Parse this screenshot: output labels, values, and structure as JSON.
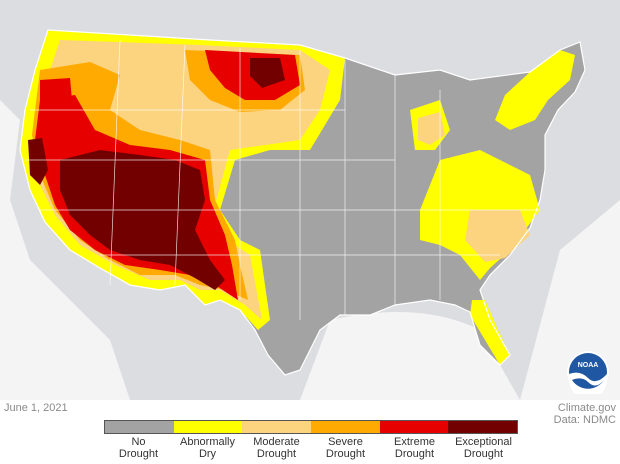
{
  "date": "June 1, 2021",
  "credit": {
    "site": "Climate.gov",
    "data": "Data: NDMC"
  },
  "logo_text": "NOAA",
  "legend": [
    {
      "line1": "No",
      "line2": "Drought",
      "color": "#a3a3a3"
    },
    {
      "line1": "Abnormally",
      "line2": "Dry",
      "color": "#ffff00"
    },
    {
      "line1": "Moderate",
      "line2": "Drought",
      "color": "#fcd37f"
    },
    {
      "line1": "Severe",
      "line2": "Drought",
      "color": "#ffaa00"
    },
    {
      "line1": "Extreme",
      "line2": "Drought",
      "color": "#e60000"
    },
    {
      "line1": "Exceptional",
      "line2": "Drought",
      "color": "#730000"
    }
  ],
  "colors": {
    "background_land": "#d9dadc",
    "water": "#ffffff",
    "state_border": "#ffffff"
  }
}
